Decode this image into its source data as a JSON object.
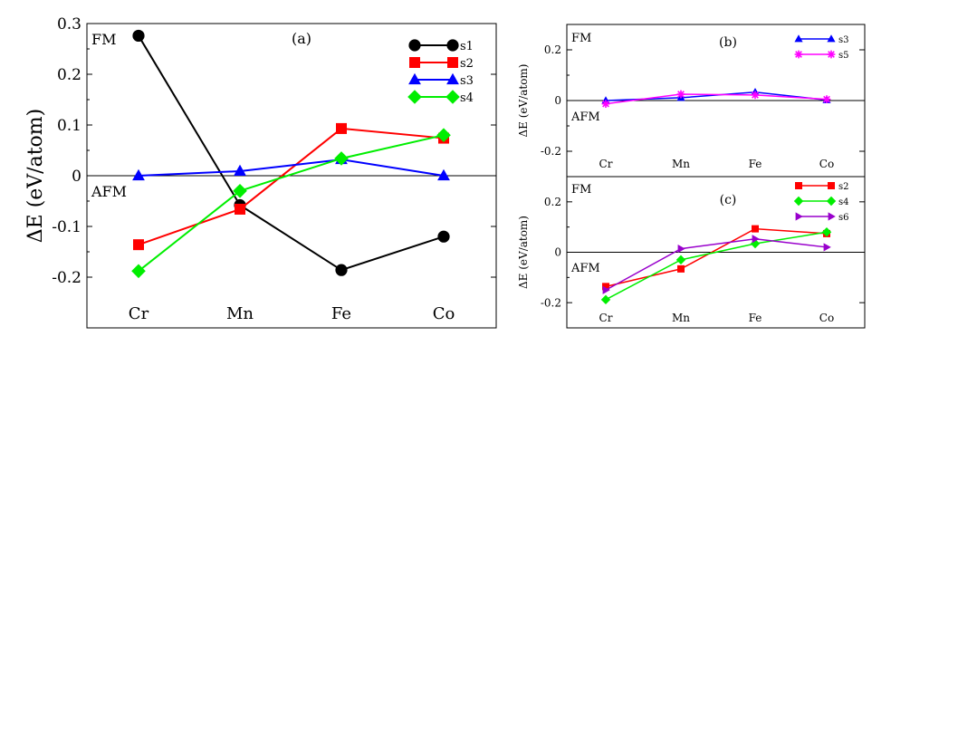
{
  "chart_data": [
    {
      "id": "a",
      "type": "line",
      "panel_label": "(a)",
      "ylabel": "ΔE (eV/atom)",
      "xlabel": "",
      "categories": [
        "Cr",
        "Mn",
        "Fe",
        "Co"
      ],
      "ylim": [
        -0.3,
        0.3
      ],
      "yticks": [
        -0.2,
        -0.1,
        0,
        0.1,
        0.2,
        0.3
      ],
      "ytick_labels": [
        "-0.2",
        "-0.1",
        "0",
        "0.1",
        "0.2",
        "0.3"
      ],
      "zero_line": true,
      "annotations": [
        "FM",
        "AFM"
      ],
      "legend_position": "top-right",
      "series": [
        {
          "name": "s1",
          "color": "#000000",
          "marker": "circle",
          "values": [
            0.276,
            -0.058,
            -0.186,
            -0.12
          ]
        },
        {
          "name": "s2",
          "color": "#ff0000",
          "marker": "square",
          "values": [
            -0.136,
            -0.066,
            0.093,
            0.074
          ]
        },
        {
          "name": "s3",
          "color": "#0000ff",
          "marker": "triangle-up",
          "values": [
            0.0,
            0.009,
            0.032,
            0.0
          ]
        },
        {
          "name": "s4",
          "color": "#00ee00",
          "marker": "diamond",
          "values": [
            -0.188,
            -0.03,
            0.034,
            0.08
          ]
        }
      ]
    },
    {
      "id": "b",
      "type": "line",
      "panel_label": "(b)",
      "ylabel": "ΔE (eV/atom)",
      "xlabel": "",
      "categories": [
        "Cr",
        "Mn",
        "Fe",
        "Co"
      ],
      "ylim": [
        -0.3,
        0.3
      ],
      "yticks": [
        -0.2,
        0,
        0.2
      ],
      "ytick_labels": [
        "-0.2",
        "0",
        "0.2"
      ],
      "zero_line": true,
      "annotations": [
        "FM",
        "AFM"
      ],
      "legend_position": "top-right",
      "series": [
        {
          "name": "s3",
          "color": "#0000ff",
          "marker": "triangle-up",
          "values": [
            0.0,
            0.011,
            0.033,
            0.002
          ]
        },
        {
          "name": "s5",
          "color": "#ff00ff",
          "marker": "star",
          "values": [
            -0.013,
            0.025,
            0.022,
            0.005
          ]
        }
      ]
    },
    {
      "id": "c",
      "type": "line",
      "panel_label": "(c)",
      "ylabel": "ΔE (eV/atom)",
      "xlabel": "",
      "categories": [
        "Cr",
        "Mn",
        "Fe",
        "Co"
      ],
      "ylim": [
        -0.3,
        0.3
      ],
      "yticks": [
        -0.2,
        0,
        0.2
      ],
      "ytick_labels": [
        "-0.2",
        "0",
        "0.2"
      ],
      "zero_line": true,
      "annotations": [
        "FM",
        "AFM"
      ],
      "legend_position": "top-right",
      "series": [
        {
          "name": "s2",
          "color": "#ff0000",
          "marker": "square",
          "values": [
            -0.136,
            -0.066,
            0.093,
            0.074
          ]
        },
        {
          "name": "s4",
          "color": "#00ee00",
          "marker": "diamond",
          "values": [
            -0.188,
            -0.03,
            0.034,
            0.08
          ]
        },
        {
          "name": "s6",
          "color": "#9900cc",
          "marker": "triangle-right",
          "values": [
            -0.15,
            0.014,
            0.053,
            0.02
          ]
        }
      ]
    }
  ]
}
